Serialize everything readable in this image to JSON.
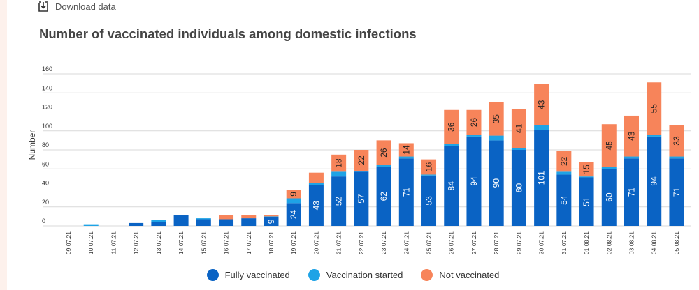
{
  "toolbar": {
    "download_label": "Download data",
    "download_icon": "download-icon"
  },
  "colors": {
    "fully": "#0a63c4",
    "started": "#1ea3e6",
    "not": "#f7845a",
    "grid": "#d9d9d9",
    "axis_text": "#333333"
  },
  "chart_data": {
    "type": "bar",
    "stacked": true,
    "title": "Number of vaccinated individuals among domestic infections",
    "ylabel": "Number",
    "xlabel": "",
    "ylim": [
      0,
      160
    ],
    "yticks": [
      0,
      20,
      40,
      60,
      80,
      100,
      120,
      140,
      160
    ],
    "grid": true,
    "legend_position": "bottom",
    "categories": [
      "09.07.21",
      "10.07.21",
      "11.07.21",
      "12.07.21",
      "13.07.21",
      "14.07.21",
      "15.07.21",
      "16.07.21",
      "17.07.21",
      "18.07.21",
      "19.07.21",
      "20.07.21",
      "21.07.21",
      "22.07.21",
      "23.07.21",
      "24.07.21",
      "25.07.21",
      "26.07.21",
      "27.07.21",
      "28.07.21",
      "29.07.21",
      "30.07.21",
      "31.07.21",
      "01.08.21",
      "02.08.21",
      "03.08.21",
      "04.08.21",
      "05.08.21"
    ],
    "series": [
      {
        "name": "Fully vaccinated",
        "values": [
          0,
          0,
          0,
          3,
          4,
          11,
          7,
          7,
          8,
          9,
          24,
          43,
          52,
          57,
          62,
          71,
          53,
          84,
          94,
          90,
          80,
          101,
          54,
          51,
          60,
          71,
          94,
          71
        ],
        "labels": [
          null,
          null,
          null,
          null,
          null,
          null,
          null,
          null,
          null,
          "9",
          "24",
          "43",
          "52",
          "57",
          "62",
          "71",
          "53",
          "84",
          "94",
          "90",
          "80",
          "101",
          "54",
          "51",
          "60",
          "71",
          "94",
          "71"
        ]
      },
      {
        "name": "Vaccination started",
        "values": [
          0,
          1,
          0,
          0,
          2,
          0,
          1,
          0,
          0,
          1,
          5,
          2,
          5,
          1,
          2,
          2,
          1,
          2,
          2,
          5,
          2,
          5,
          3,
          1,
          2,
          2,
          2,
          2
        ],
        "labels": []
      },
      {
        "name": "Not vaccinated",
        "values": [
          0,
          0,
          0,
          0,
          0,
          0,
          0,
          4,
          3,
          1,
          9,
          11,
          18,
          22,
          26,
          14,
          16,
          36,
          26,
          35,
          41,
          43,
          22,
          15,
          45,
          43,
          55,
          33
        ],
        "labels": [
          null,
          null,
          null,
          null,
          null,
          null,
          null,
          null,
          null,
          null,
          "9",
          null,
          "18",
          "22",
          "26",
          "14",
          "16",
          "36",
          "26",
          "35",
          "41",
          "43",
          "22",
          "15",
          "45",
          "43",
          "55",
          "33"
        ]
      }
    ]
  }
}
